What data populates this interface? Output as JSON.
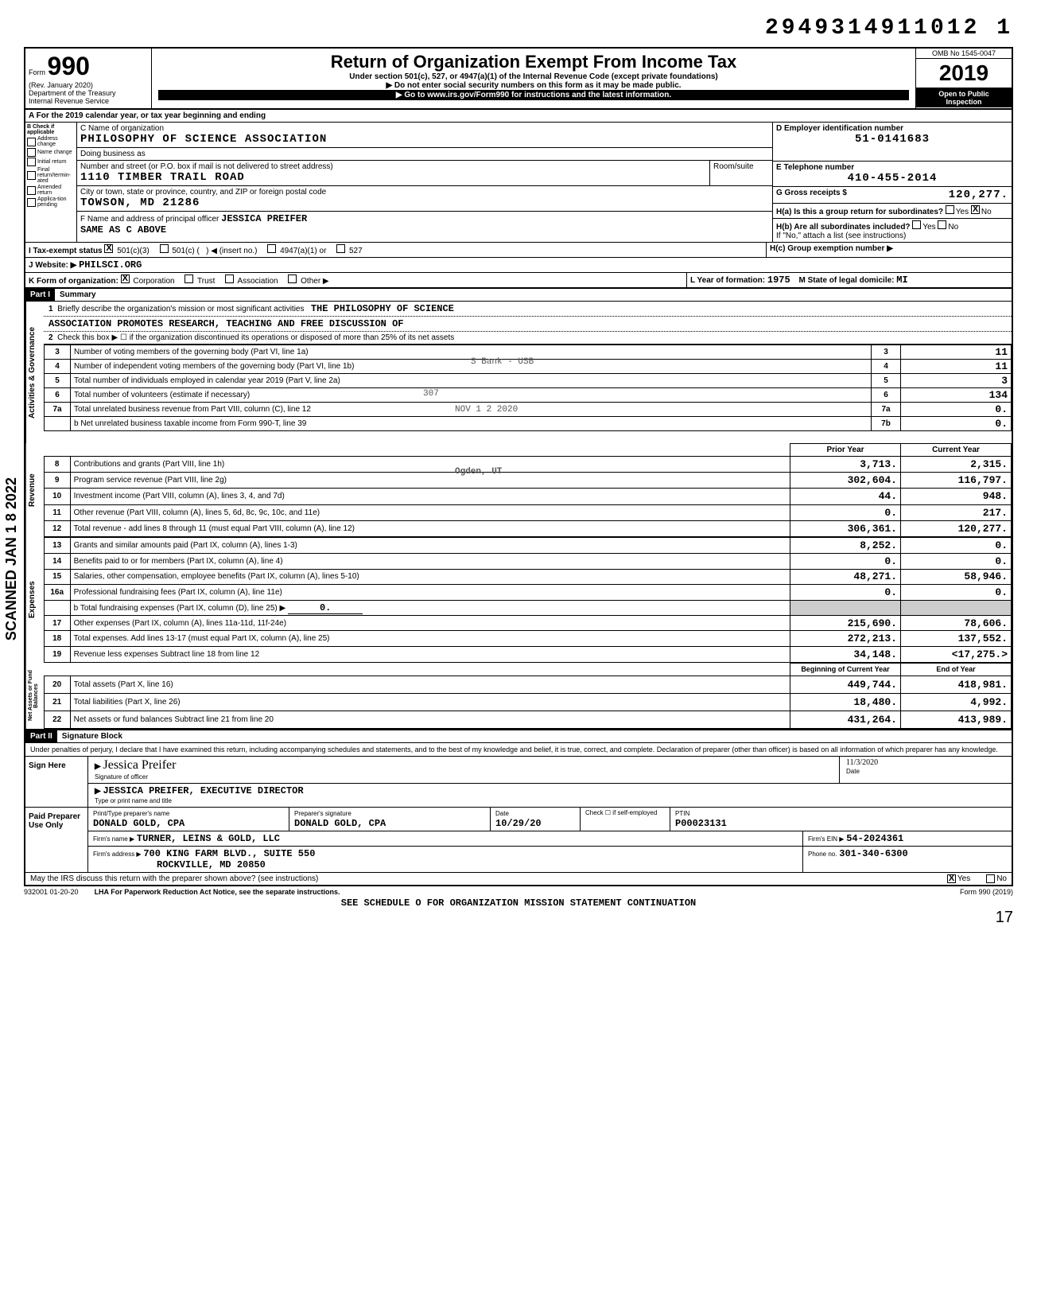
{
  "top_code": "2949314911012 1",
  "form": {
    "number": "990",
    "rev": "(Rev. January 2020)",
    "dept": "Department of the Treasury",
    "irs": "Internal Revenue Service",
    "title": "Return of Organization Exempt From Income Tax",
    "subtitle": "Under section 501(c), 527, or 4947(a)(1) of the Internal Revenue Code (except private foundations)",
    "note1": "▶ Do not enter social security numbers on this form as it may be made public.",
    "note2": "▶ Go to www.irs.gov/Form990 for instructions and the latest information.",
    "omb": "OMB No 1545-0047",
    "year": "2019",
    "open": "Open to Public",
    "inspection": "Inspection"
  },
  "section_a": "A For the 2019 calendar year, or tax year beginning                                             and ending",
  "section_b": {
    "label": "B  Check if applicable",
    "items": [
      "Address change",
      "Name change",
      "Initial return",
      "Final return/termin-ated",
      "Amended return",
      "Applica-tion pending"
    ]
  },
  "org": {
    "c_label": "C Name of organization",
    "name": "PHILOSOPHY OF SCIENCE ASSOCIATION",
    "dba_label": "Doing business as",
    "addr_label": "Number and street (or P.O. box if mail is not delivered to street address)",
    "room_label": "Room/suite",
    "addr": "1110 TIMBER TRAIL ROAD",
    "city_label": "City or town, state or province, country, and ZIP or foreign postal code",
    "city": "TOWSON, MD  21286",
    "f_label": "F Name and address of principal officer",
    "officer": "JESSICA PREIFER",
    "officer_addr": "SAME AS C ABOVE"
  },
  "right": {
    "d_label": "D Employer identification number",
    "ein": "51-0141683",
    "e_label": "E Telephone number",
    "phone": "410-455-2014",
    "g_label": "G Gross receipts $",
    "gross": "120,277.",
    "ha_label": "H(a) Is this a group return for subordinates?",
    "ha_yes": "Yes",
    "ha_no": "No",
    "hb_label": "H(b) Are all subordinates included?",
    "hb_note": "If \"No,\" attach a list (see instructions)",
    "hc_label": "H(c) Group exemption number ▶"
  },
  "status": {
    "i_label": "I  Tax-exempt status",
    "c3": "501(c)(3)",
    "c": "501(c) (",
    "insert": ") ◀  (insert no.)",
    "a4947": "4947(a)(1) or",
    "s527": "527",
    "j_label": "J Website: ▶",
    "website": "PHILSCI.ORG",
    "k_label": "K Form of organization:",
    "corp": "Corporation",
    "trust": "Trust",
    "assoc": "Association",
    "other": "Other ▶",
    "l_label": "L Year of formation:",
    "year": "1975",
    "m_label": "M State of legal domicile:",
    "state": "MI"
  },
  "part1": {
    "header": "Part I",
    "title": "Summary",
    "line1_label": "Briefly describe the organization's mission or most significant activities",
    "line1_text": "THE PHILOSOPHY OF SCIENCE",
    "line1_text2": "ASSOCIATION PROMOTES RESEARCH, TEACHING AND FREE DISCUSSION OF",
    "line2": "Check this box ▶ ☐ if the organization discontinued its operations or disposed of more than 25% of its net assets",
    "rows_gov": [
      {
        "n": "3",
        "label": "Number of voting members of the governing body (Part VI, line 1a)",
        "rn": "3",
        "v": "11"
      },
      {
        "n": "4",
        "label": "Number of independent voting members of the governing body (Part VI, line 1b)",
        "rn": "4",
        "v": "11"
      },
      {
        "n": "5",
        "label": "Total number of individuals employed in calendar year 2019 (Part V, line 2a)",
        "rn": "5",
        "v": "3"
      },
      {
        "n": "6",
        "label": "Total number of volunteers (estimate if necessary)",
        "rn": "6",
        "v": "134"
      },
      {
        "n": "7a",
        "label": "Total unrelated business revenue from Part VIII, column (C), line 12",
        "rn": "7a",
        "v": "0."
      },
      {
        "n": "",
        "label": "b Net unrelated business taxable income from Form 990-T, line 39",
        "rn": "7b",
        "v": "0."
      }
    ],
    "col_headers": {
      "prior": "Prior Year",
      "current": "Current Year"
    },
    "rows_rev": [
      {
        "n": "8",
        "label": "Contributions and grants (Part VIII, line 1h)",
        "p": "3,713.",
        "c": "2,315."
      },
      {
        "n": "9",
        "label": "Program service revenue (Part VIII, line 2g)",
        "p": "302,604.",
        "c": "116,797."
      },
      {
        "n": "10",
        "label": "Investment income (Part VIII, column (A), lines 3, 4, and 7d)",
        "p": "44.",
        "c": "948."
      },
      {
        "n": "11",
        "label": "Other revenue (Part VIII, column (A), lines 5, 6d, 8c, 9c, 10c, and 11e)",
        "p": "0.",
        "c": "217."
      },
      {
        "n": "12",
        "label": "Total revenue - add lines 8 through 11 (must equal Part VIII, column (A), line 12)",
        "p": "306,361.",
        "c": "120,277."
      }
    ],
    "rows_exp": [
      {
        "n": "13",
        "label": "Grants and similar amounts paid (Part IX, column (A), lines 1-3)",
        "p": "8,252.",
        "c": "0."
      },
      {
        "n": "14",
        "label": "Benefits paid to or for members (Part IX, column (A), line 4)",
        "p": "0.",
        "c": "0."
      },
      {
        "n": "15",
        "label": "Salaries, other compensation, employee benefits (Part IX, column (A), lines 5-10)",
        "p": "48,271.",
        "c": "58,946."
      },
      {
        "n": "16a",
        "label": "Professional fundraising fees (Part IX, column (A), line 11e)",
        "p": "0.",
        "c": "0."
      },
      {
        "n": "",
        "label": "b Total fundraising expenses (Part IX, column (D), line 25)    ▶",
        "p": "",
        "c": ""
      },
      {
        "n": "17",
        "label": "Other expenses (Part IX, column (A), lines 11a-11d, 11f-24e)",
        "p": "215,690.",
        "c": "78,606."
      },
      {
        "n": "18",
        "label": "Total expenses. Add lines 13-17 (must equal Part IX, column (A), line 25)",
        "p": "272,213.",
        "c": "137,552."
      },
      {
        "n": "19",
        "label": "Revenue less expenses  Subtract line 18 from line 12",
        "p": "34,148.",
        "c": "<17,275.>"
      }
    ],
    "col_headers2": {
      "begin": "Beginning of Current Year",
      "end": "End of Year"
    },
    "rows_net": [
      {
        "n": "20",
        "label": "Total assets (Part X, line 16)",
        "p": "449,744.",
        "c": "418,981."
      },
      {
        "n": "21",
        "label": "Total liabilities (Part X, line 26)",
        "p": "18,480.",
        "c": "4,992."
      },
      {
        "n": "22",
        "label": "Net assets or fund balances  Subtract line 21 from line 20",
        "p": "431,264.",
        "c": "413,989."
      }
    ],
    "fundraising_zero": "0.",
    "vert_labels": {
      "gov": "Activities & Governance",
      "rev": "Revenue",
      "exp": "Expenses",
      "net": "Net Assets or Fund Balances"
    }
  },
  "part2": {
    "header": "Part II",
    "title": "Signature Block",
    "perjury": "Under penalties of perjury, I declare that I have examined this return, including accompanying schedules and statements, and to the best of my knowledge and belief, it is true, correct, and complete. Declaration of preparer (other than officer) is based on all information of which preparer has any knowledge.",
    "sign_here": "Sign Here",
    "sig_officer_label": "Signature of officer",
    "date_label": "Date",
    "sig_date": "11/3/2020",
    "officer_name": "JESSICA PREIFER, EXECUTIVE DIRECTOR",
    "officer_type_label": "Type or print name and title",
    "paid": "Paid Preparer Use Only",
    "prep_name_label": "Print/Type preparer's name",
    "prep_name": "DONALD GOLD, CPA",
    "prep_sig_label": "Preparer's signature",
    "prep_sig": "DONALD GOLD, CPA",
    "prep_date": "10/29/20",
    "check_self": "Check ☐ if self-employed",
    "ptin_label": "PTIN",
    "ptin": "P00023131",
    "firm_name_label": "Firm's name ▶",
    "firm_name": "TURNER, LEINS & GOLD, LLC",
    "firm_ein_label": "Firm's EIN ▶",
    "firm_ein": "54-2024361",
    "firm_addr_label": "Firm's address ▶",
    "firm_addr1": "700 KING FARM BLVD., SUITE 550",
    "firm_addr2": "ROCKVILLE, MD 20850",
    "phone_label": "Phone no.",
    "firm_phone": "301-340-6300",
    "discuss": "May the IRS discuss this return with the preparer shown above? (see instructions)",
    "discuss_yes": "Yes",
    "discuss_no": "No"
  },
  "footer": {
    "code": "932001 01-20-20",
    "lha": "LHA  For Paperwork Reduction Act Notice, see the separate instructions.",
    "form": "Form 990 (2019)",
    "cont": "SEE SCHEDULE O FOR ORGANIZATION MISSION STATEMENT CONTINUATION",
    "page": "17"
  },
  "stamps": {
    "bank": "S Bank - USB",
    "date": "NOV  1 2 2020",
    "num": "307",
    "ogden": "Ogden, UT"
  },
  "scanned": "SCANNED JAN 1 8 2022"
}
